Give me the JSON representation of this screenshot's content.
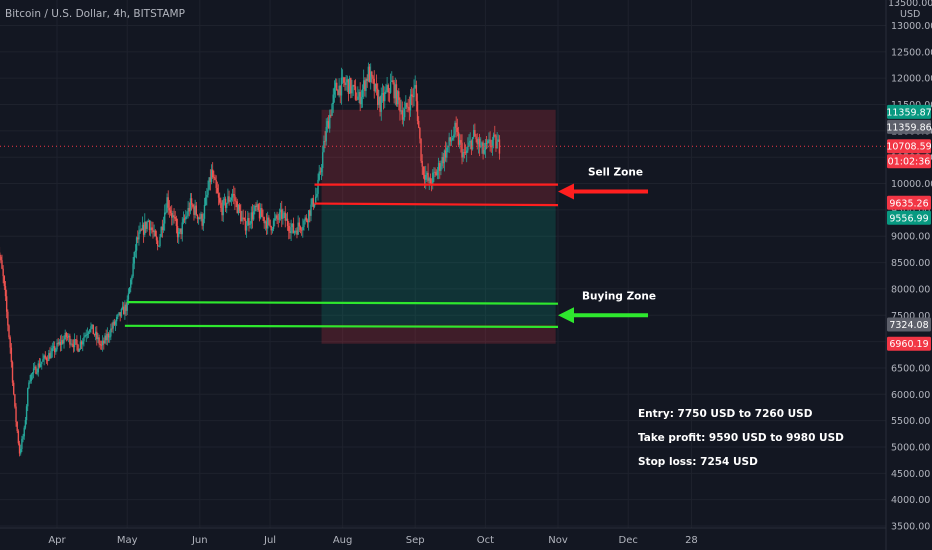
{
  "chart_data": {
    "type": "candlestick",
    "title": "Bitcoin / U.S. Dollar, 4h, BITSTAMP",
    "y_axis_unit": "USD",
    "y_axis_top_tick": "13500.00",
    "y_ticks": [
      13000,
      12500,
      12000,
      11500,
      11000,
      10500,
      10000,
      9500,
      9000,
      8500,
      8000,
      7500,
      7000,
      6500,
      6000,
      5500,
      5000,
      4500,
      4000,
      3500
    ],
    "ylim": [
      3280,
      13600
    ],
    "x_ticks": [
      {
        "label": "Apr",
        "date": "2019-04-01"
      },
      {
        "label": "May",
        "date": "2019-05-01"
      },
      {
        "label": "Jun",
        "date": "2019-06-01"
      },
      {
        "label": "Jul",
        "date": "2019-07-01"
      },
      {
        "label": "Aug",
        "date": "2019-08-01"
      },
      {
        "label": "Sep",
        "date": "2019-09-01"
      },
      {
        "label": "Oct",
        "date": "2019-10-01"
      },
      {
        "label": "Nov",
        "date": "2019-11-01"
      },
      {
        "label": "Dec",
        "date": "2019-12-01"
      },
      {
        "label": "28",
        "date": "2019-12-28"
      }
    ],
    "price_path": [
      {
        "date": "2019-03-06",
        "price": 9000
      },
      {
        "date": "2019-03-09",
        "price": 8200
      },
      {
        "date": "2019-03-12",
        "price": 6900
      },
      {
        "date": "2019-03-14",
        "price": 5700
      },
      {
        "date": "2019-03-16",
        "price": 4900
      },
      {
        "date": "2019-03-18",
        "price": 5300
      },
      {
        "date": "2019-03-20",
        "price": 6300
      },
      {
        "date": "2019-03-25",
        "price": 6600
      },
      {
        "date": "2019-03-30",
        "price": 6800
      },
      {
        "date": "2019-04-05",
        "price": 7100
      },
      {
        "date": "2019-04-10",
        "price": 6900
      },
      {
        "date": "2019-04-15",
        "price": 7300
      },
      {
        "date": "2019-04-20",
        "price": 6900
      },
      {
        "date": "2019-04-25",
        "price": 7300
      },
      {
        "date": "2019-05-01",
        "price": 7700
      },
      {
        "date": "2019-05-05",
        "price": 8900
      },
      {
        "date": "2019-05-10",
        "price": 9300
      },
      {
        "date": "2019-05-14",
        "price": 8800
      },
      {
        "date": "2019-05-18",
        "price": 9700
      },
      {
        "date": "2019-05-23",
        "price": 9000
      },
      {
        "date": "2019-05-28",
        "price": 9600
      },
      {
        "date": "2019-06-02",
        "price": 9300
      },
      {
        "date": "2019-06-06",
        "price": 10200
      },
      {
        "date": "2019-06-10",
        "price": 9500
      },
      {
        "date": "2019-06-15",
        "price": 9800
      },
      {
        "date": "2019-06-20",
        "price": 9200
      },
      {
        "date": "2019-06-25",
        "price": 9500
      },
      {
        "date": "2019-07-01",
        "price": 9200
      },
      {
        "date": "2019-07-06",
        "price": 9400
      },
      {
        "date": "2019-07-11",
        "price": 9100
      },
      {
        "date": "2019-07-16",
        "price": 9300
      },
      {
        "date": "2019-07-21",
        "price": 9800
      },
      {
        "date": "2019-07-25",
        "price": 11000
      },
      {
        "date": "2019-07-29",
        "price": 11800
      },
      {
        "date": "2019-08-03",
        "price": 11900
      },
      {
        "date": "2019-08-08",
        "price": 11600
      },
      {
        "date": "2019-08-12",
        "price": 12100
      },
      {
        "date": "2019-08-17",
        "price": 11500
      },
      {
        "date": "2019-08-22",
        "price": 11900
      },
      {
        "date": "2019-08-27",
        "price": 11300
      },
      {
        "date": "2019-09-01",
        "price": 11800
      },
      {
        "date": "2019-09-04",
        "price": 10300
      },
      {
        "date": "2019-09-07",
        "price": 10000
      },
      {
        "date": "2019-09-10",
        "price": 10200
      },
      {
        "date": "2019-09-14",
        "price": 10600
      },
      {
        "date": "2019-09-18",
        "price": 11000
      },
      {
        "date": "2019-09-22",
        "price": 10500
      },
      {
        "date": "2019-09-26",
        "price": 10900
      },
      {
        "date": "2019-09-30",
        "price": 10600
      },
      {
        "date": "2019-10-04",
        "price": 10800
      },
      {
        "date": "2019-10-07",
        "price": 10710
      }
    ],
    "zones": [
      {
        "kind": "stop-loss",
        "date_start": "2019-07-23",
        "date_end": "2019-10-31",
        "price_low": 9600,
        "price_high": 11400
      },
      {
        "kind": "take-profit",
        "date_start": "2019-07-23",
        "date_end": "2019-10-31",
        "price_low": 7320,
        "price_high": 9600
      },
      {
        "kind": "stop-loss",
        "date_start": "2019-07-23",
        "date_end": "2019-10-31",
        "price_low": 6960,
        "price_high": 7320
      }
    ],
    "level_lines": [
      {
        "color": "#ff1f1f",
        "date_start": "2019-07-20",
        "date_end": "2019-11-01",
        "price_start": 9980,
        "price_end": 9980
      },
      {
        "color": "#ff1f1f",
        "date_start": "2019-07-20",
        "date_end": "2019-11-01",
        "price_start": 9620,
        "price_end": 9590
      },
      {
        "color": "#2ee82e",
        "date_start": "2019-05-01",
        "date_end": "2019-11-01",
        "price_start": 7750,
        "price_end": 7720
      },
      {
        "color": "#2ee82e",
        "date_start": "2019-04-30",
        "date_end": "2019-11-01",
        "price_start": 7300,
        "price_end": 7280
      }
    ],
    "current_price_line": 10708.59,
    "price_badges": [
      {
        "price": 11359.87,
        "text": "11359.87",
        "color": "#089981"
      },
      {
        "price": 11359.86,
        "text": "11359.86",
        "color": "#5d606b"
      },
      {
        "price": 10708.59,
        "text": "10708.59",
        "color": "#f23645"
      },
      {
        "price": 10708.59,
        "text": "01:02:36",
        "color": "#f23645"
      },
      {
        "price": 9635.26,
        "text": "9635.26",
        "color": "#f23645"
      },
      {
        "price": 9556.99,
        "text": "9556.99",
        "color": "#089981"
      },
      {
        "price": 7324.08,
        "text": "7324.08",
        "color": "#5d606b"
      },
      {
        "price": 6960.19,
        "text": "6960.19",
        "color": "#f23645"
      }
    ],
    "zone_labels": [
      {
        "text": "Sell Zone",
        "arrow_color": "#ff1f1f",
        "price": 9850
      },
      {
        "text": "Buying Zone",
        "arrow_color": "#2ee82e",
        "price": 7500
      }
    ],
    "annotations": [
      "Entry: 7750 USD to 7260 USD",
      "Take profit: 9590 USD to 9980 USD",
      "Stop loss: 7254 USD"
    ],
    "colors": {
      "background": "#131722",
      "up": "#26a69a",
      "down": "#ef5350",
      "grid": "#1e222d"
    }
  }
}
